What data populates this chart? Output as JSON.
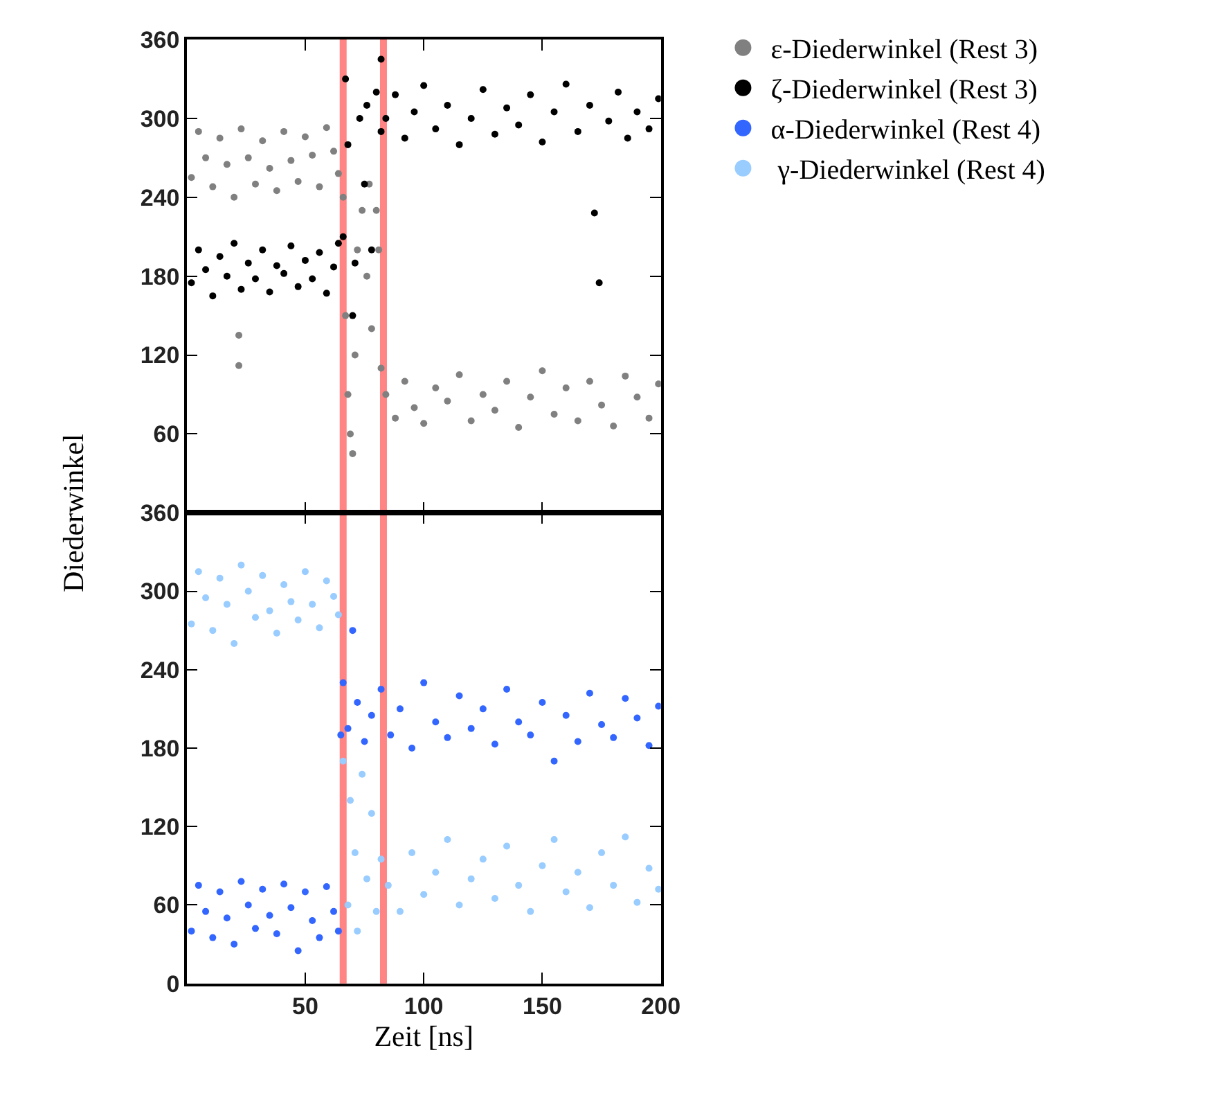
{
  "chart_data": [
    {
      "type": "scatter",
      "ylabel": "Diederwinkel",
      "xlim": [
        0,
        200
      ],
      "xticks": [
        50,
        100,
        150,
        200
      ],
      "ylim": [
        0,
        360
      ],
      "yticks": [
        60,
        120,
        180,
        240,
        300,
        360
      ],
      "tick_labels": "y",
      "marker": "circle",
      "legend": "top right",
      "ref_lines": [
        {
          "axis": "x",
          "value": 66,
          "color": "#ff6666"
        },
        {
          "axis": "x",
          "value": 83,
          "color": "#ff6666"
        }
      ],
      "series": [
        {
          "name": "ε-Diederwinkel (Rest 3)",
          "color": "#808080",
          "x": [
            2,
            5,
            8,
            11,
            14,
            17,
            20,
            22,
            22,
            23,
            26,
            29,
            32,
            35,
            38,
            41,
            44,
            47,
            50,
            53,
            56,
            59,
            62,
            64,
            66,
            67,
            68,
            69,
            70,
            71,
            72,
            74,
            76,
            77,
            78,
            80,
            81,
            82,
            84,
            88,
            92,
            96,
            100,
            105,
            110,
            115,
            120,
            125,
            130,
            135,
            140,
            145,
            150,
            155,
            160,
            165,
            170,
            175,
            180,
            185,
            190,
            195,
            199
          ],
          "values": [
            255,
            290,
            270,
            248,
            285,
            265,
            240,
            135,
            112,
            292,
            270,
            250,
            283,
            262,
            245,
            290,
            268,
            252,
            286,
            272,
            248,
            293,
            275,
            258,
            240,
            150,
            90,
            60,
            45,
            120,
            200,
            230,
            180,
            250,
            140,
            230,
            200,
            110,
            90,
            72,
            100,
            80,
            68,
            95,
            85,
            105,
            70,
            90,
            78,
            100,
            65,
            88,
            108,
            75,
            95,
            70,
            100,
            82,
            66,
            104,
            88,
            72,
            98
          ]
        },
        {
          "name": "ζ-Diederwinkel (Rest 3)",
          "color": "#000000",
          "x": [
            2,
            5,
            8,
            11,
            14,
            17,
            20,
            23,
            26,
            29,
            32,
            35,
            38,
            41,
            44,
            47,
            50,
            53,
            56,
            59,
            62,
            64,
            66,
            67,
            68,
            70,
            71,
            73,
            75,
            76,
            78,
            80,
            82,
            82,
            84,
            88,
            92,
            96,
            100,
            105,
            110,
            115,
            120,
            125,
            130,
            135,
            140,
            145,
            150,
            155,
            160,
            165,
            170,
            172,
            174,
            178,
            182,
            186,
            190,
            195,
            199
          ],
          "values": [
            175,
            200,
            185,
            165,
            195,
            180,
            205,
            170,
            190,
            178,
            200,
            168,
            188,
            182,
            203,
            172,
            192,
            178,
            198,
            167,
            187,
            205,
            210,
            330,
            280,
            150,
            190,
            300,
            250,
            310,
            200,
            320,
            290,
            345,
            300,
            318,
            285,
            305,
            325,
            292,
            310,
            280,
            300,
            322,
            288,
            308,
            295,
            318,
            282,
            305,
            326,
            290,
            310,
            228,
            175,
            298,
            320,
            285,
            305,
            292,
            315
          ]
        }
      ]
    },
    {
      "type": "scatter",
      "xlabel": "Zeit [ns]",
      "xlim": [
        0,
        200
      ],
      "xticks": [
        50,
        100,
        150,
        200
      ],
      "ylim": [
        0,
        360
      ],
      "yticks": [
        0,
        60,
        120,
        180,
        240,
        300,
        360
      ],
      "marker": "circle",
      "legend": "top right",
      "ref_lines": [
        {
          "axis": "x",
          "value": 66,
          "color": "#ff6666"
        },
        {
          "axis": "x",
          "value": 83,
          "color": "#ff6666"
        }
      ],
      "series": [
        {
          "name": "α-Diederwinkel (Rest 4)",
          "color": "#3366ff",
          "x": [
            2,
            5,
            8,
            11,
            14,
            17,
            20,
            23,
            26,
            29,
            32,
            35,
            38,
            41,
            44,
            47,
            50,
            53,
            56,
            59,
            62,
            64,
            65,
            66,
            68,
            70,
            72,
            75,
            78,
            82,
            86,
            90,
            95,
            100,
            105,
            110,
            115,
            120,
            125,
            130,
            135,
            140,
            145,
            150,
            155,
            160,
            165,
            170,
            175,
            180,
            185,
            190,
            195,
            199
          ],
          "values": [
            40,
            75,
            55,
            35,
            70,
            50,
            30,
            78,
            60,
            42,
            72,
            52,
            38,
            76,
            58,
            25,
            70,
            48,
            35,
            74,
            55,
            40,
            190,
            230,
            195,
            270,
            215,
            185,
            205,
            225,
            190,
            210,
            180,
            230,
            200,
            188,
            220,
            195,
            210,
            183,
            225,
            200,
            190,
            215,
            170,
            205,
            185,
            222,
            198,
            188,
            218,
            203,
            182,
            212
          ]
        },
        {
          "name": " γ-Diederwinkel (Rest 4)",
          "color": "#99ccff",
          "x": [
            2,
            5,
            8,
            11,
            14,
            17,
            20,
            23,
            26,
            29,
            32,
            35,
            38,
            41,
            44,
            47,
            50,
            53,
            56,
            59,
            62,
            64,
            66,
            68,
            69,
            71,
            72,
            74,
            76,
            78,
            80,
            82,
            85,
            90,
            95,
            100,
            105,
            110,
            115,
            120,
            125,
            130,
            135,
            140,
            145,
            150,
            155,
            160,
            165,
            170,
            175,
            180,
            185,
            190,
            195,
            199
          ],
          "values": [
            275,
            315,
            295,
            270,
            310,
            290,
            260,
            320,
            300,
            280,
            312,
            285,
            268,
            305,
            292,
            278,
            315,
            290,
            272,
            308,
            296,
            282,
            170,
            60,
            140,
            100,
            40,
            160,
            80,
            130,
            55,
            95,
            75,
            55,
            100,
            68,
            85,
            110,
            60,
            80,
            95,
            65,
            105,
            75,
            55,
            90,
            110,
            70,
            85,
            58,
            100,
            75,
            112,
            62,
            88,
            72
          ]
        }
      ]
    }
  ]
}
